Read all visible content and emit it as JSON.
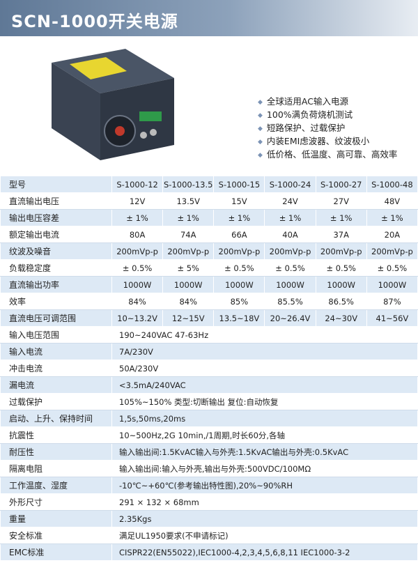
{
  "header": {
    "title": "SCN-1000开关电源"
  },
  "features": [
    "全球适用AC输入电源",
    "100%满负荷烧机测试",
    "短路保护、过载保护",
    "内装EMI虑波器、纹波极小",
    "低价格、低温度、高可靠、高效率"
  ],
  "table": {
    "header": {
      "label": "型号",
      "models": [
        "S-1000-12",
        "S-1000-13.5",
        "S-1000-15",
        "S-1000-24",
        "S-1000-27",
        "S-1000-48"
      ]
    },
    "rows": [
      {
        "label": "直流输出电压",
        "values": [
          "12V",
          "13.5V",
          "15V",
          "24V",
          "27V",
          "48V"
        ]
      },
      {
        "label": "输出电压容差",
        "values": [
          "± 1%",
          "± 1%",
          "± 1%",
          "± 1%",
          "± 1%",
          "± 1%"
        ]
      },
      {
        "label": "额定输出电流",
        "values": [
          "80A",
          "74A",
          "66A",
          "40A",
          "37A",
          "20A"
        ]
      },
      {
        "label": "纹波及噪音",
        "values": [
          "200mVp-p",
          "200mVp-p",
          "200mVp-p",
          "200mVp-p",
          "200mVp-p",
          "200mVp-p"
        ]
      },
      {
        "label": "负载稳定度",
        "values": [
          "± 0.5%",
          "± 5%",
          "± 0.5%",
          "± 0.5%",
          "± 0.5%",
          "± 0.5%"
        ]
      },
      {
        "label": "直流输出功率",
        "values": [
          "1000W",
          "1000W",
          "1000W",
          "1000W",
          "1000W",
          "1000W"
        ]
      },
      {
        "label": "效率",
        "values": [
          "84%",
          "84%",
          "85%",
          "85.5%",
          "86.5%",
          "87%"
        ]
      },
      {
        "label": "直流电压可调范围",
        "values": [
          "10~13.2V",
          "12~15V",
          "13.5~18V",
          "20~26.4V",
          "24~30V",
          "41~56V"
        ]
      }
    ],
    "spec_rows": [
      {
        "label": "输入电压范围",
        "value": "190~240VAC 47-63Hz"
      },
      {
        "label": "输入电流",
        "value": "7A/230V"
      },
      {
        "label": "冲击电流",
        "value": "50A/230V"
      },
      {
        "label": "漏电流",
        "value": "<3.5mA/240VAC"
      },
      {
        "label": "过载保护",
        "value": "105%~150% 类型:切断输出  复位:自动恢复"
      },
      {
        "label": "启动、上升、保持时间",
        "value": "1,5s,50ms,20ms"
      },
      {
        "label": "抗震性",
        "value": "10~500Hz,2G 10min,/1周期,时长60分,各轴"
      },
      {
        "label": "耐压性",
        "value": "输入输出间:1.5KvAC输入与外壳:1.5KvAC输出与外壳:0.5KvAC"
      },
      {
        "label": "隔离电阻",
        "value": "输入输出间:输入与外壳,输出与外壳:500VDC/100MΩ"
      },
      {
        "label": "工作温度、湿度",
        "value": "-10℃~+60℃(参考输出特性图),20%~90%RH"
      },
      {
        "label": "外形尺寸",
        "value": "291 × 132 × 68mm"
      },
      {
        "label": "重量",
        "value": "2.35Kgs"
      },
      {
        "label": "安全标准",
        "value": "满足UL1950要求(不申请标记)"
      },
      {
        "label": "EMC标准",
        "value": "CISPR22(EN55022),IEC1000-4,2,3,4,5,6,8,11 IEC1000-3-2"
      }
    ]
  }
}
